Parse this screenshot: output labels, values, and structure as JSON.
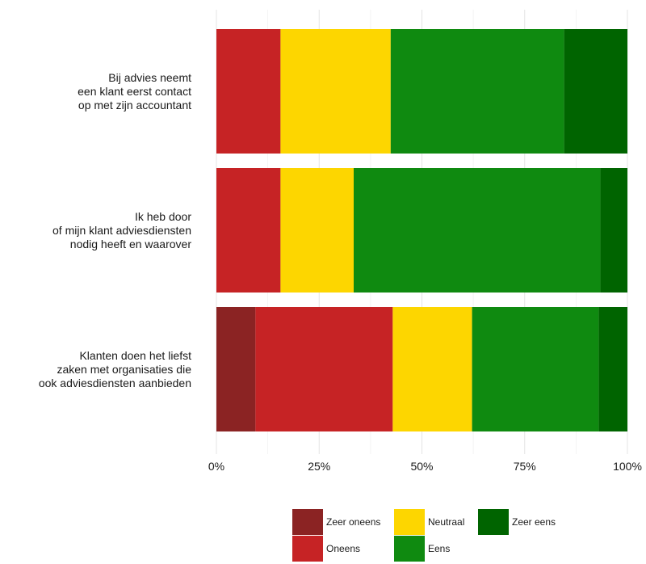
{
  "chart_data": {
    "type": "bar",
    "orientation": "horizontal",
    "stacked": true,
    "categories": [
      [
        "Bij advies neemt",
        "een klant eerst contact",
        "op met zijn accountant"
      ],
      [
        "Ik heb door",
        "of mijn klant adviesdiensten",
        "nodig heeft en waarover"
      ],
      [
        "Klanten doen het liefst",
        "zaken met organisaties die",
        "ook adviesdiensten aanbieden"
      ]
    ],
    "series": [
      {
        "name": "Zeer oneens",
        "color": "#8b2323",
        "values": [
          0,
          0,
          9.5
        ]
      },
      {
        "name": "Oneens",
        "color": "#c62325",
        "values": [
          15.6,
          15.6,
          33.4
        ]
      },
      {
        "name": "Neutraal",
        "color": "#fdd600",
        "values": [
          26.8,
          17.8,
          19.3
        ]
      },
      {
        "name": "Eens",
        "color": "#0f8a10",
        "values": [
          42.2,
          60.0,
          30.8
        ]
      },
      {
        "name": "Zeer eens",
        "color": "#006400",
        "values": [
          15.4,
          6.6,
          7.0
        ]
      }
    ],
    "xlim": [
      0,
      100
    ],
    "xticks": [
      0,
      25,
      50,
      75,
      100
    ],
    "xtick_labels": [
      "0%",
      "25%",
      "50%",
      "75%",
      "100%"
    ],
    "grid": true,
    "legend": {
      "position": "bottom",
      "rows": [
        [
          "Zeer oneens",
          "Neutraal",
          "Zeer eens"
        ],
        [
          "Oneens",
          "Eens"
        ]
      ]
    }
  }
}
